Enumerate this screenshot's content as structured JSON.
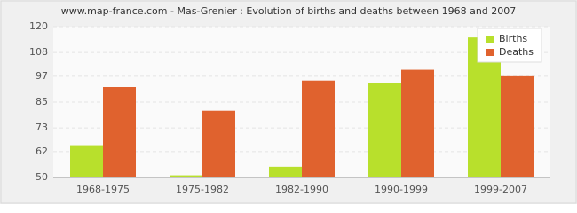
{
  "chart_data": {
    "type": "bar",
    "title": "www.map-france.com - Mas-Grenier : Evolution of births and deaths between 1968 and 2007",
    "categories": [
      "1968-1975",
      "1975-1982",
      "1982-1990",
      "1990-1999",
      "1999-2007"
    ],
    "series": [
      {
        "name": "Births",
        "color": "#b8e02c",
        "values": [
          65,
          51,
          55,
          94,
          115
        ]
      },
      {
        "name": "Deaths",
        "color": "#e0622e",
        "values": [
          92,
          81,
          95,
          100,
          97
        ]
      }
    ],
    "ylim": [
      50,
      120
    ],
    "yticks": [
      50,
      62,
      73,
      85,
      97,
      108,
      120
    ],
    "grid": true,
    "legend": "top-right"
  }
}
